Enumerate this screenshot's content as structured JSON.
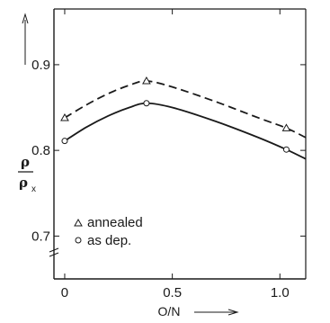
{
  "chart_data": {
    "type": "line",
    "xlabel": "O/N",
    "ylabel_numerator": "ρ",
    "ylabel_denominator": "ρ",
    "ylabel_subscript": "x",
    "xlim": [
      -0.05,
      1.12
    ],
    "ylim": [
      0.65,
      0.965
    ],
    "x_ticks": [
      0,
      0.5,
      1.0
    ],
    "x_tick_labels": [
      "0",
      "0.5",
      "1.0"
    ],
    "y_ticks": [
      0.7,
      0.8,
      0.9
    ],
    "y_tick_labels": [
      "0.7",
      "0.8",
      "0.9"
    ],
    "grid": false,
    "legend_position": "lower-left",
    "series": [
      {
        "name": "annealed",
        "marker": "triangle",
        "line_style": "dashed",
        "points": [
          [
            0,
            0.838
          ],
          [
            0.38,
            0.881
          ],
          [
            1.03,
            0.826
          ]
        ],
        "curve": [
          [
            0,
            0.838
          ],
          [
            0.1,
            0.853
          ],
          [
            0.2,
            0.866
          ],
          [
            0.3,
            0.876
          ],
          [
            0.38,
            0.881
          ],
          [
            0.5,
            0.874
          ],
          [
            0.7,
            0.857
          ],
          [
            0.9,
            0.838
          ],
          [
            1.03,
            0.826
          ],
          [
            1.12,
            0.815
          ]
        ]
      },
      {
        "name": "as dep.",
        "marker": "circle",
        "line_style": "solid",
        "points": [
          [
            0,
            0.811
          ],
          [
            0.38,
            0.855
          ],
          [
            1.03,
            0.801
          ]
        ],
        "curve": [
          [
            0,
            0.811
          ],
          [
            0.1,
            0.827
          ],
          [
            0.2,
            0.84
          ],
          [
            0.3,
            0.85
          ],
          [
            0.38,
            0.855
          ],
          [
            0.5,
            0.85
          ],
          [
            0.7,
            0.834
          ],
          [
            0.9,
            0.815
          ],
          [
            1.03,
            0.801
          ],
          [
            1.12,
            0.79
          ]
        ]
      }
    ],
    "legend": [
      {
        "marker": "triangle",
        "label": "annealed"
      },
      {
        "marker": "circle",
        "label": "as dep."
      }
    ]
  }
}
